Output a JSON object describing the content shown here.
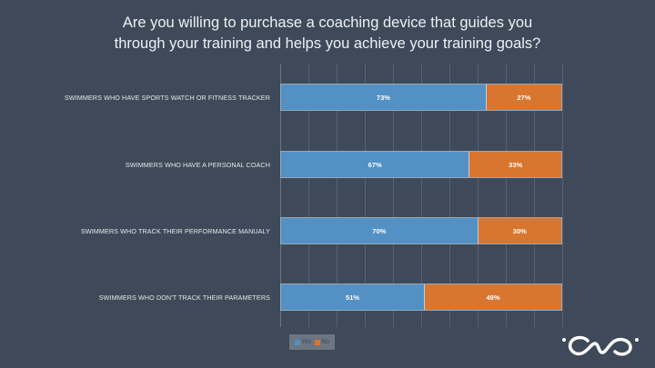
{
  "title": {
    "line1": "Are you willing to purchase a coaching device that guides you",
    "line2": "through your training and helps you achieve your training goals?"
  },
  "colors": {
    "background": "#3e4a59",
    "yes": "#5390c4",
    "no": "#d8762f"
  },
  "chart_data": {
    "type": "bar",
    "orientation": "horizontal",
    "stacked": true,
    "percent_stacked": true,
    "title": "Are you willing to purchase a coaching device that guides you through your training and helps you achieve your training goals?",
    "categories": [
      "SWIMMERS WHO HAVE SPORTS WATCH OR FITNESS TRACKER",
      "SWIMMERS WHO HAVE A PERSONAL COACH",
      "SWIMMERS WHO TRACK THEIR PERFORMANCE MANUALY",
      "SWIMMERS WHO DON'T TRACK THEIR PARAMETERS"
    ],
    "series": [
      {
        "name": "Yes",
        "color": "#5390c4",
        "values": [
          73,
          67,
          70,
          51
        ]
      },
      {
        "name": "No",
        "color": "#d8762f",
        "values": [
          27,
          33,
          30,
          49
        ]
      }
    ],
    "data_labels": [
      [
        "73%",
        "27%"
      ],
      [
        "67%",
        "33%"
      ],
      [
        "70%",
        "30%"
      ],
      [
        "51%",
        "49%"
      ]
    ],
    "xlim": [
      0,
      100
    ],
    "grid": true,
    "grid_step": 10,
    "xlabel": "",
    "ylabel": "",
    "legend_position": "bottom-left"
  },
  "legend": {
    "yes": "Yes",
    "no": "No"
  },
  "logo": {
    "icon": "brand-logo-icon"
  }
}
